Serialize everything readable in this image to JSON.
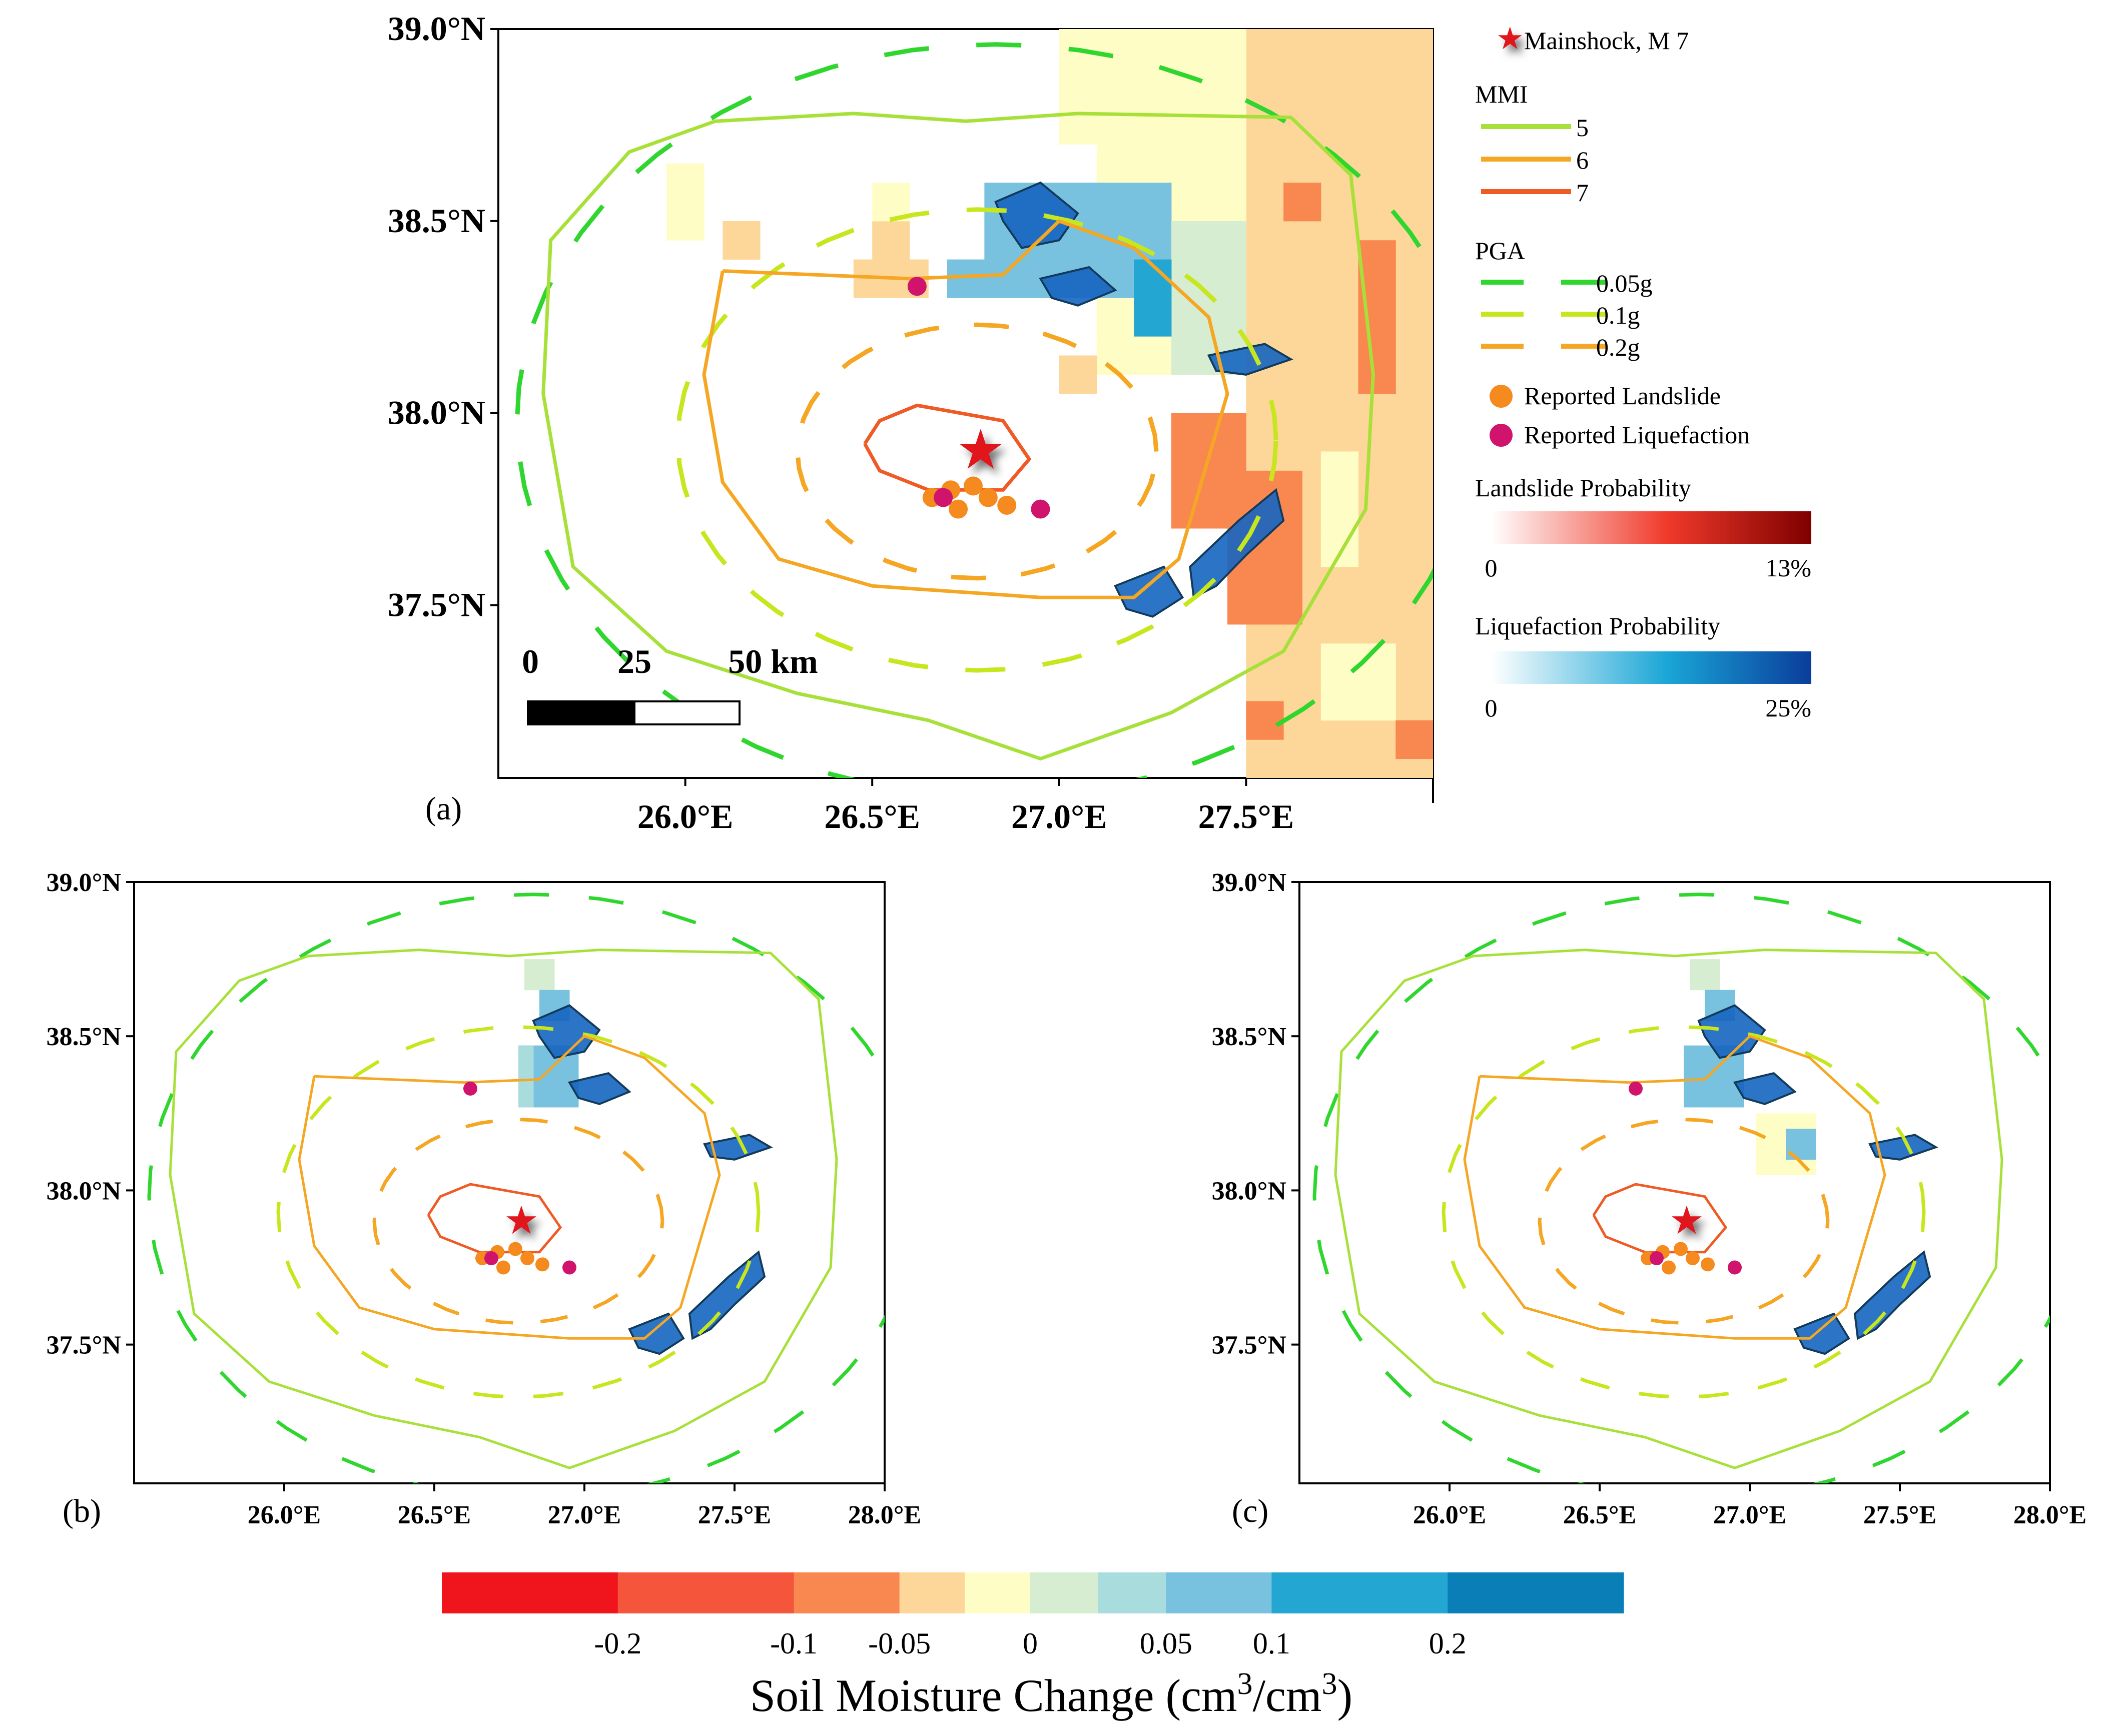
{
  "panels": {
    "a": {
      "label": "(a)"
    },
    "b": {
      "label": "(b)"
    },
    "c": {
      "label": "(c)"
    }
  },
  "map": {
    "lon_range": [
      25.5,
      28.0
    ],
    "lat_range": [
      37.05,
      39.0
    ],
    "lat_ticks": [
      "39.0°N",
      "38.5°N",
      "38.0°N",
      "37.5°N"
    ],
    "lon_ticks_a": [
      "26.0°E",
      "26.5°E",
      "27.0°E",
      "27.5°E"
    ],
    "lon_ticks_bc": [
      "26.0°E",
      "26.5°E",
      "27.0°E",
      "27.5°E",
      "28.0°E"
    ]
  },
  "mainshock": {
    "lon": 26.79,
    "lat": 37.9,
    "magnitude_label": "Mainshock, M 7"
  },
  "landslides": [
    {
      "lon": 26.66,
      "lat": 37.78
    },
    {
      "lon": 26.71,
      "lat": 37.8
    },
    {
      "lon": 26.73,
      "lat": 37.75
    },
    {
      "lon": 26.81,
      "lat": 37.78
    },
    {
      "lon": 26.86,
      "lat": 37.76
    },
    {
      "lon": 26.77,
      "lat": 37.81
    }
  ],
  "liquefaction": [
    {
      "lon": 26.62,
      "lat": 38.33
    },
    {
      "lon": 26.69,
      "lat": 37.78
    },
    {
      "lon": 26.95,
      "lat": 37.75
    }
  ],
  "scale_bar": {
    "labels": [
      "0",
      "25",
      "50 km"
    ]
  },
  "legend": {
    "mmi_title": "MMI",
    "mmi_items": [
      {
        "label": "5",
        "color": "#a8e03a"
      },
      {
        "label": "6",
        "color": "#f5a623"
      },
      {
        "label": "7",
        "color": "#f05a24"
      }
    ],
    "pga_title": "PGA",
    "pga_items": [
      {
        "label": "0.05g",
        "color": "#2ed62e"
      },
      {
        "label": "0.1g",
        "color": "#c8e61e"
      },
      {
        "label": "0.2g",
        "color": "#f5a623"
      }
    ],
    "landslide_label": "Reported Landslide",
    "liquefaction_label": "Reported Liquefaction",
    "landslide_prob_title": "Landslide Probability",
    "landslide_prob_range": [
      "0",
      "13%"
    ],
    "liquefaction_prob_title": "Liquefaction Probability",
    "liquefaction_prob_range": [
      "0",
      "25%"
    ]
  },
  "colorbar": {
    "title_main": "Soil Moisture Change (cm",
    "title_sup1": "3",
    "title_mid": "/cm",
    "title_sup2": "3",
    "title_end": ")",
    "colors": [
      "#f0141c",
      "#f5553a",
      "#f8884f",
      "#fdd79a",
      "#fffdc6",
      "#d7edd2",
      "#a9dcdc",
      "#79c2df",
      "#24a6d2",
      "#0a7fb7"
    ],
    "tick_labels": [
      "-0.2",
      "-0.1",
      "-0.05",
      "0",
      "0.05",
      "0.1",
      "0.2"
    ]
  }
}
